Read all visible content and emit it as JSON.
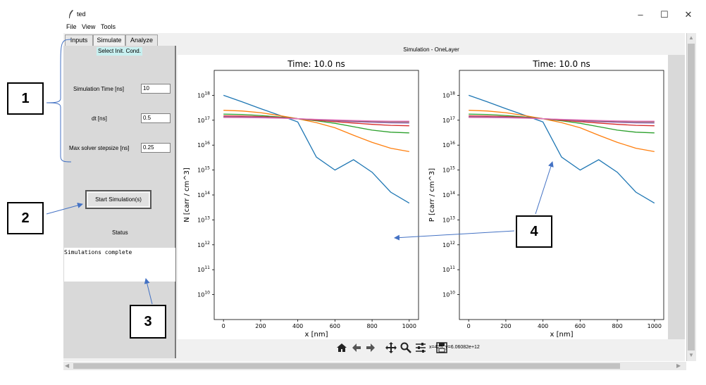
{
  "window": {
    "title": "ted",
    "icon": "feather-icon",
    "controls": [
      "–",
      "☐",
      "✕"
    ]
  },
  "menu": [
    "File",
    "View",
    "Tools"
  ],
  "tabs": [
    {
      "label": "Inputs",
      "active": false
    },
    {
      "label": "Simulate",
      "active": true
    },
    {
      "label": "Analyze",
      "active": false
    }
  ],
  "left_panel": {
    "select_init": "Select Init. Cond.",
    "params": [
      {
        "label": "Simulation Time [ns]",
        "value": "10"
      },
      {
        "label": "dt [ns]",
        "value": "0.5"
      },
      {
        "label": "Max solver stepsize [ns]",
        "value": "0.25"
      }
    ],
    "start_button": "Start Simulation(s)",
    "status_label": "Status",
    "status_text": "Simulations complete"
  },
  "sim_header": "Simulation - OneLayer",
  "toolbar": {
    "icons": [
      "home-icon",
      "back-icon",
      "forward-icon",
      "pan-icon",
      "zoom-icon",
      "configure-icon",
      "save-icon"
    ],
    "coord_readout": "x=425, y=6.06082e+12"
  },
  "annotations": [
    "1",
    "2",
    "3",
    "4"
  ],
  "colors": {
    "blue": "#1f77b4",
    "orange": "#ff7f0e",
    "green": "#2ca02c",
    "red": "#d62728",
    "purple": "#9467bd",
    "brown": "#8c564b",
    "pink": "#e377c2",
    "annotation_arrow": "#4472c4"
  },
  "chart_data": [
    {
      "type": "line",
      "title": "Time: 10.0 ns",
      "xlabel": "x [nm]",
      "ylabel": "N [carr / cm^3]",
      "xlim": [
        -50,
        1050
      ],
      "ylim": [
        1000000000.0,
        1e+19
      ],
      "yscale": "log",
      "xticks": [
        0,
        200,
        400,
        600,
        800,
        1000
      ],
      "yticks": [
        10000000000.0,
        100000000000.0,
        1000000000000.0,
        10000000000000.0,
        100000000000000.0,
        1000000000000000.0,
        1e+16,
        1e+17,
        1e+18
      ],
      "grid": false,
      "x": [
        0,
        100,
        200,
        300,
        400,
        500,
        600,
        700,
        800,
        900,
        1000
      ],
      "series": [
        {
          "color": "#1f77b4",
          "values": [
            1e+18,
            5.5e+17,
            2.9e+17,
            1.6e+17,
            8.5e+16,
            3300000000000000.0,
            1000000000000000.0,
            2600000000000000.0,
            820000000000000.0,
            130000000000000.0,
            47000000000000.0
          ]
        },
        {
          "color": "#ff7f0e",
          "values": [
            2.5e+17,
            2.35e+17,
            2e+17,
            1.55e+17,
            1.15e+17,
            8e+16,
            5e+16,
            2.5e+16,
            1.3e+16,
            7500000000000000.0,
            5500000000000000.0
          ]
        },
        {
          "color": "#2ca02c",
          "values": [
            1.75e+17,
            1.7e+17,
            1.55e+17,
            1.35e+17,
            1.15e+17,
            9.5e+16,
            7.5e+16,
            5.5e+16,
            4e+16,
            3.3e+16,
            3.1e+16
          ]
        },
        {
          "color": "#d62728",
          "values": [
            1.5e+17,
            1.47e+17,
            1.4e+17,
            1.3e+17,
            1.15e+17,
            1e+17,
            8.8e+16,
            7.7e+16,
            6.8e+16,
            6.2e+16,
            6e+16
          ]
        },
        {
          "color": "#9467bd",
          "values": [
            1.38e+17,
            1.36e+17,
            1.32e+17,
            1.25e+17,
            1.15e+17,
            1.05e+17,
            9.5e+16,
            8.8e+16,
            8.2e+16,
            7.8e+16,
            7.6e+16
          ]
        },
        {
          "color": "#8c564b",
          "values": [
            1.32e+17,
            1.3e+17,
            1.27e+17,
            1.22e+17,
            1.15e+17,
            1.07e+17,
            1e+17,
            9.4e+16,
            8.9e+16,
            8.6e+16,
            8.5e+16
          ]
        },
        {
          "color": "#e377c2",
          "values": [
            1.28e+17,
            1.27e+17,
            1.24e+17,
            1.2e+17,
            1.15e+17,
            1.09e+17,
            1.03e+17,
            9.8e+16,
            9.4e+16,
            9.2e+16,
            9.1e+16
          ]
        }
      ]
    },
    {
      "type": "line",
      "title": "Time: 10.0 ns",
      "xlabel": "x [nm]",
      "ylabel": "P [carr / cm^3]",
      "xlim": [
        -50,
        1050
      ],
      "ylim": [
        1000000000.0,
        1e+19
      ],
      "yscale": "log",
      "xticks": [
        0,
        200,
        400,
        600,
        800,
        1000
      ],
      "yticks": [
        10000000000.0,
        100000000000.0,
        1000000000000.0,
        10000000000000.0,
        100000000000000.0,
        1000000000000000.0,
        1e+16,
        1e+17,
        1e+18
      ],
      "grid": false,
      "x": [
        0,
        100,
        200,
        300,
        400,
        500,
        600,
        700,
        800,
        900,
        1000
      ],
      "series": [
        {
          "color": "#1f77b4",
          "values": [
            1e+18,
            5.5e+17,
            2.9e+17,
            1.6e+17,
            8.5e+16,
            3300000000000000.0,
            1000000000000000.0,
            2600000000000000.0,
            820000000000000.0,
            130000000000000.0,
            47000000000000.0
          ]
        },
        {
          "color": "#ff7f0e",
          "values": [
            2.5e+17,
            2.35e+17,
            2e+17,
            1.55e+17,
            1.15e+17,
            8e+16,
            5e+16,
            2.5e+16,
            1.3e+16,
            7500000000000000.0,
            5500000000000000.0
          ]
        },
        {
          "color": "#2ca02c",
          "values": [
            1.75e+17,
            1.7e+17,
            1.55e+17,
            1.35e+17,
            1.15e+17,
            9.5e+16,
            7.5e+16,
            5.5e+16,
            4e+16,
            3.3e+16,
            3.1e+16
          ]
        },
        {
          "color": "#d62728",
          "values": [
            1.5e+17,
            1.47e+17,
            1.4e+17,
            1.3e+17,
            1.15e+17,
            1e+17,
            8.8e+16,
            7.7e+16,
            6.8e+16,
            6.2e+16,
            6e+16
          ]
        },
        {
          "color": "#9467bd",
          "values": [
            1.38e+17,
            1.36e+17,
            1.32e+17,
            1.25e+17,
            1.15e+17,
            1.05e+17,
            9.5e+16,
            8.8e+16,
            8.2e+16,
            7.8e+16,
            7.6e+16
          ]
        },
        {
          "color": "#8c564b",
          "values": [
            1.32e+17,
            1.3e+17,
            1.27e+17,
            1.22e+17,
            1.15e+17,
            1.07e+17,
            1e+17,
            9.4e+16,
            8.9e+16,
            8.6e+16,
            8.5e+16
          ]
        },
        {
          "color": "#e377c2",
          "values": [
            1.28e+17,
            1.27e+17,
            1.24e+17,
            1.2e+17,
            1.15e+17,
            1.09e+17,
            1.03e+17,
            9.8e+16,
            9.4e+16,
            9.2e+16,
            9.1e+16
          ]
        }
      ]
    }
  ]
}
